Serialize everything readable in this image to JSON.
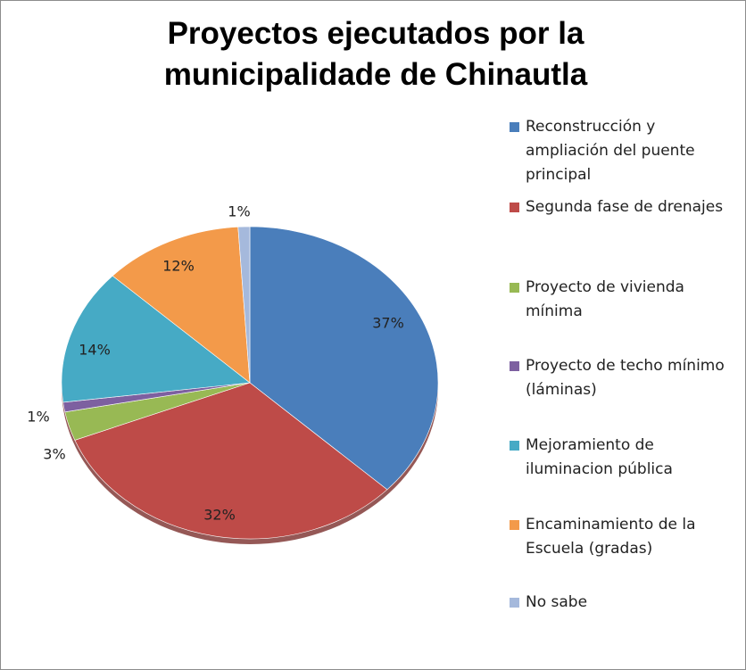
{
  "chart_data": {
    "type": "pie",
    "title": "Proyectos ejecutados por la municipalidade de Chinautla",
    "categories": [
      "Reconstrucción y ampliación del puente principal",
      "Segunda fase de drenajes",
      "Proyecto de vivienda mínima",
      "Proyecto de techo mínimo (láminas)",
      "Mejoramiento de iluminacion pública",
      "Encaminamiento de la Escuela (gradas)",
      "No sabe"
    ],
    "values": [
      37,
      32,
      3,
      1,
      14,
      12,
      1
    ],
    "value_labels": [
      "37%",
      "32%",
      "3%",
      "1%",
      "14%",
      "12%",
      "1%"
    ],
    "colors": [
      "#4a7ebb",
      "#be4b48",
      "#98b954",
      "#7d60a0",
      "#46aac5",
      "#f39a4a",
      "#a5b9dc"
    ],
    "legend": "right"
  }
}
